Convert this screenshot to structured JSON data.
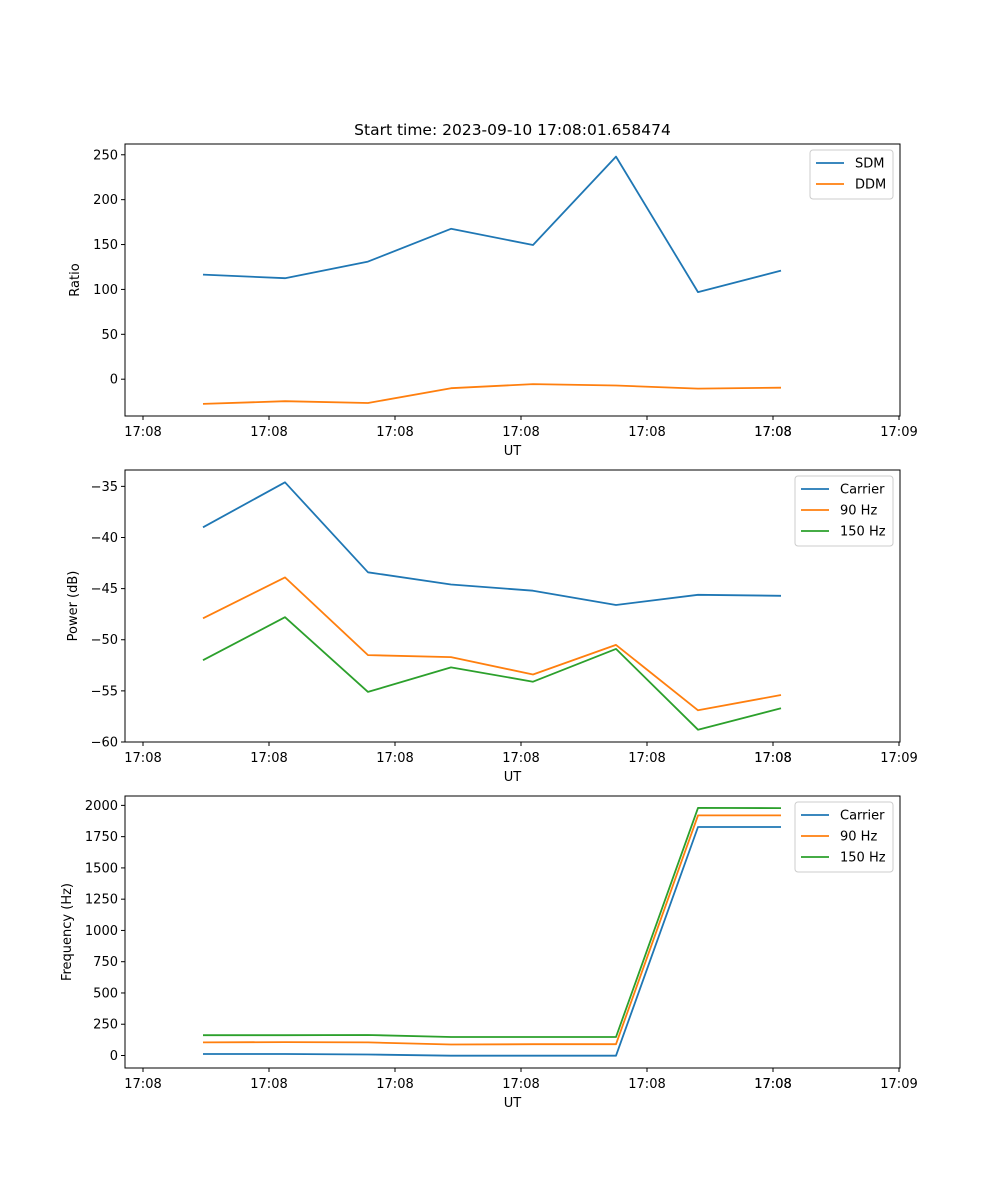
{
  "chart_data": [
    {
      "type": "line",
      "title": "Start time: 2023-09-10 17:08:01.658474",
      "xlabel": "UT",
      "ylabel": "Ratio",
      "x_tick_labels": [
        "17:08",
        "17:08",
        "17:08",
        "17:08",
        "17:08",
        "17:08",
        "17:08",
        "17:09"
      ],
      "y_ticks": [
        0,
        50,
        100,
        150,
        200,
        250
      ],
      "ylim": [
        -41,
        262
      ],
      "x": [
        1,
        2,
        3,
        4,
        5,
        6,
        7,
        8
      ],
      "xlim": [
        0.05,
        9.35
      ],
      "x_tick_positions": [
        0.25,
        1.77,
        3.29,
        4.81,
        6.33,
        7.85,
        9.37,
        10.89
      ],
      "series": [
        {
          "name": "SDM",
          "color": "#1f77b4",
          "values": [
            116.5,
            112.5,
            131,
            167.5,
            149.5,
            248,
            97,
            121
          ]
        },
        {
          "name": "DDM",
          "color": "#ff7f0e",
          "values": [
            -27.5,
            -24.5,
            -26.5,
            -10,
            -5.5,
            -7,
            -10.5,
            -9.5
          ]
        }
      ],
      "legend": "top-right"
    },
    {
      "type": "line",
      "title": "",
      "xlabel": "UT",
      "ylabel": "Power (dB)",
      "x_tick_labels": [
        "17:08",
        "17:08",
        "17:08",
        "17:08",
        "17:08",
        "17:08",
        "17:08",
        "17:09"
      ],
      "y_ticks": [
        -60,
        -55,
        -50,
        -45,
        -40,
        -35
      ],
      "ylim": [
        -60,
        -33.4
      ],
      "x": [
        1,
        2,
        3,
        4,
        5,
        6,
        7,
        8
      ],
      "series": [
        {
          "name": "Carrier",
          "color": "#1f77b4",
          "values": [
            -39,
            -34.6,
            -43.4,
            -44.6,
            -45.2,
            -46.6,
            -45.6,
            -45.7
          ]
        },
        {
          "name": "90 Hz",
          "color": "#ff7f0e",
          "values": [
            -47.9,
            -43.9,
            -51.5,
            -51.7,
            -53.4,
            -50.5,
            -56.9,
            -55.4
          ]
        },
        {
          "name": "150 Hz",
          "color": "#2ca02c",
          "values": [
            -52,
            -47.8,
            -55.1,
            -52.7,
            -54.1,
            -50.9,
            -58.8,
            -56.7
          ]
        }
      ],
      "legend": "top-right"
    },
    {
      "type": "line",
      "title": "",
      "xlabel": "UT",
      "ylabel": "Frequency (Hz)",
      "x_tick_labels": [
        "17:08",
        "17:08",
        "17:08",
        "17:08",
        "17:08",
        "17:08",
        "17:08",
        "17:09"
      ],
      "y_ticks": [
        0,
        250,
        500,
        750,
        1000,
        1250,
        1500,
        1750,
        2000
      ],
      "ylim": [
        -100,
        2075
      ],
      "x": [
        1,
        2,
        3,
        4,
        5,
        6,
        7,
        8
      ],
      "series": [
        {
          "name": "Carrier",
          "color": "#1f77b4",
          "values": [
            12,
            12,
            8,
            -2,
            -2,
            -2,
            1827,
            1827
          ]
        },
        {
          "name": "90 Hz",
          "color": "#ff7f0e",
          "values": [
            105,
            107,
            105,
            88,
            90,
            90,
            1920,
            1920
          ]
        },
        {
          "name": "150 Hz",
          "color": "#2ca02c",
          "values": [
            162,
            162,
            164,
            148,
            148,
            148,
            1980,
            1978
          ]
        }
      ],
      "legend": "top-right"
    }
  ]
}
